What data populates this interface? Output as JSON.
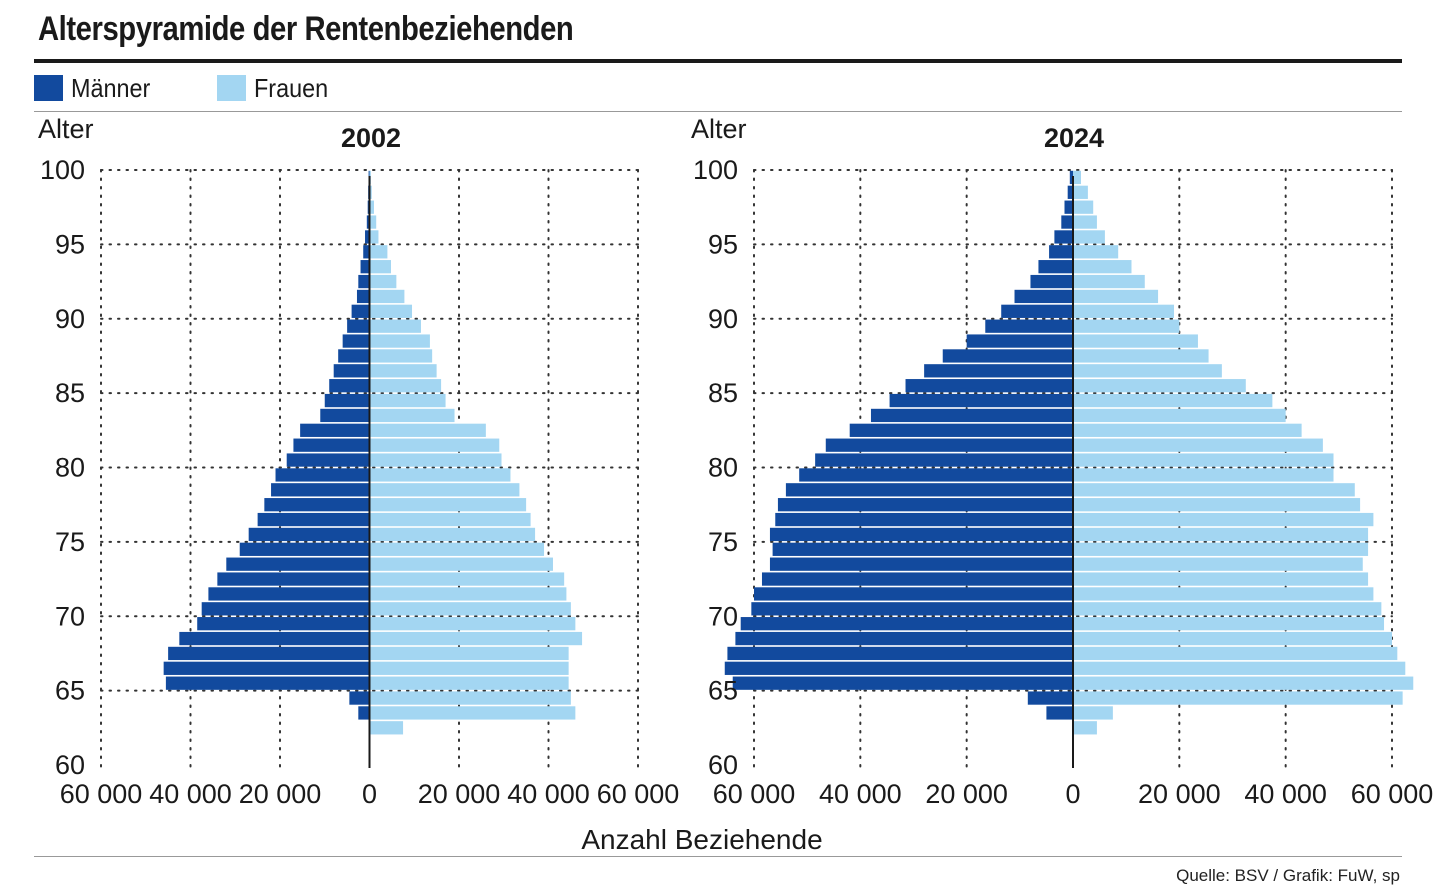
{
  "title": "Alterspyramide der Rentenbeziehenden",
  "legend": [
    {
      "label": "Männer",
      "color": "#124a9e"
    },
    {
      "label": "Frauen",
      "color": "#a3d6f2"
    }
  ],
  "x_axis_title": "Anzahl Beziehende",
  "source": "Quelle: BSV / Grafik: FuW, sp",
  "chart_data": [
    {
      "type": "bar",
      "title": "2002",
      "ylabel": "Alter",
      "xlabel": "Anzahl Beziehende",
      "ylim": [
        60,
        100
      ],
      "xlim": [
        -60000,
        60000
      ],
      "y_ticks": [
        100,
        95,
        90,
        85,
        80,
        75,
        70,
        65,
        60
      ],
      "x_ticks": [
        "60 000",
        "40 000",
        "20 000",
        "0",
        "20 000",
        "40 000",
        "60 000"
      ],
      "grid": true,
      "categories": [
        62,
        63,
        64,
        65,
        66,
        67,
        68,
        69,
        70,
        71,
        72,
        73,
        74,
        75,
        76,
        77,
        78,
        79,
        80,
        81,
        82,
        83,
        84,
        85,
        86,
        87,
        88,
        89,
        90,
        91,
        92,
        93,
        94,
        95,
        96,
        97,
        98,
        99
      ],
      "series": [
        {
          "name": "Männer",
          "values": [
            0,
            2500,
            4500,
            45500,
            46000,
            45000,
            42500,
            38500,
            37500,
            36000,
            34000,
            32000,
            29000,
            27000,
            25000,
            23500,
            22000,
            21000,
            18500,
            17000,
            15500,
            11000,
            10000,
            9000,
            8000,
            7000,
            6000,
            5000,
            4000,
            2800,
            2500,
            2000,
            1400,
            1000,
            600,
            400,
            300,
            200
          ]
        },
        {
          "name": "Frauen",
          "values": [
            7500,
            46000,
            45000,
            44500,
            44500,
            44500,
            47500,
            46000,
            45000,
            44000,
            43500,
            41000,
            39000,
            37000,
            36000,
            35000,
            33500,
            31500,
            29500,
            29000,
            26000,
            19000,
            17000,
            16000,
            15000,
            14000,
            13500,
            11500,
            9500,
            7800,
            6000,
            4800,
            4000,
            2000,
            1500,
            1000,
            500,
            300
          ]
        }
      ]
    },
    {
      "type": "bar",
      "title": "2024",
      "ylabel": "Alter",
      "xlabel": "Anzahl Beziehende",
      "ylim": [
        60,
        100
      ],
      "xlim": [
        -60000,
        60000
      ],
      "y_ticks": [
        100,
        95,
        90,
        85,
        80,
        75,
        70,
        65,
        60
      ],
      "x_ticks": [
        "60 000",
        "40 000",
        "20 000",
        "0",
        "20 000",
        "40 000",
        "60 000"
      ],
      "grid": true,
      "categories": [
        62,
        63,
        64,
        65,
        66,
        67,
        68,
        69,
        70,
        71,
        72,
        73,
        74,
        75,
        76,
        77,
        78,
        79,
        80,
        81,
        82,
        83,
        84,
        85,
        86,
        87,
        88,
        89,
        90,
        91,
        92,
        93,
        94,
        95,
        96,
        97,
        98,
        99
      ],
      "series": [
        {
          "name": "Männer",
          "values": [
            0,
            5000,
            8500,
            64000,
            65500,
            65000,
            63500,
            62500,
            60500,
            60000,
            58500,
            57000,
            56500,
            57000,
            56000,
            55500,
            54000,
            51500,
            48500,
            46500,
            42000,
            38000,
            34500,
            31500,
            28000,
            24500,
            20000,
            16500,
            13500,
            11000,
            8000,
            6500,
            4500,
            3500,
            2200,
            1600,
            1000,
            600
          ]
        },
        {
          "name": "Frauen",
          "values": [
            4500,
            7500,
            62000,
            64000,
            62500,
            61000,
            60000,
            58500,
            58000,
            56500,
            55500,
            54500,
            55500,
            55500,
            56500,
            54000,
            53000,
            49000,
            49000,
            47000,
            43000,
            40000,
            37500,
            32500,
            28000,
            25500,
            23500,
            20000,
            19000,
            16000,
            13500,
            11000,
            8500,
            6000,
            4500,
            3800,
            2800,
            1500
          ]
        }
      ]
    }
  ]
}
